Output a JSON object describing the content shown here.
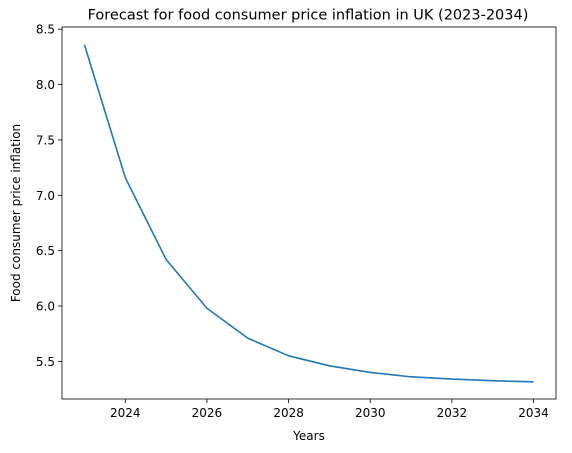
{
  "chart_data": {
    "type": "line",
    "title": "Forecast for food consumer price inflation in UK (2023-2034)",
    "xlabel": "Years",
    "ylabel": "Food consumer price inflation",
    "xlim": [
      2022.45,
      2034.55
    ],
    "ylim": [
      5.16,
      8.52
    ],
    "xticks": [
      2024,
      2026,
      2028,
      2030,
      2032,
      2034
    ],
    "yticks": [
      5.5,
      6.0,
      6.5,
      7.0,
      7.5,
      8.0,
      8.5
    ],
    "grid": false,
    "series": [
      {
        "color": "#1f77b4",
        "x": [
          2023,
          2024,
          2025,
          2026,
          2027,
          2028,
          2029,
          2030,
          2031,
          2032,
          2033,
          2034
        ],
        "y": [
          8.36,
          7.16,
          6.42,
          5.98,
          5.71,
          5.55,
          5.46,
          5.4,
          5.36,
          5.34,
          5.325,
          5.315
        ]
      }
    ]
  }
}
